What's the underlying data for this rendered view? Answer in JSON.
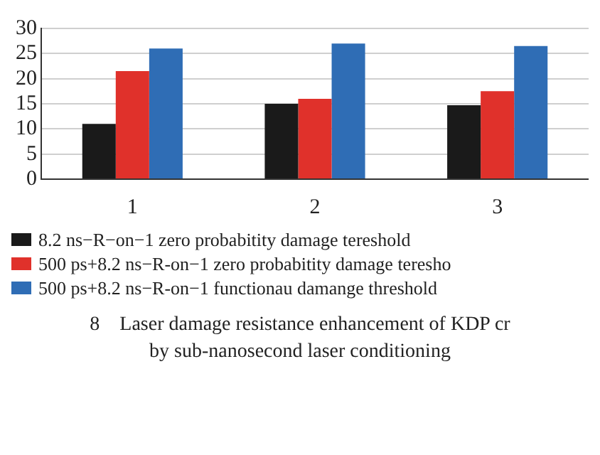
{
  "chart_data": {
    "type": "bar",
    "categories": [
      "1",
      "2",
      "3"
    ],
    "series": [
      {
        "name": "8.2 ns−R−on−1 zero probabitity damage tereshold",
        "color": "#1a1a1a",
        "values": [
          11,
          15,
          14.7
        ]
      },
      {
        "name": "500 ps+8.2 ns−R-on−1 zero probabitity damage teresho",
        "color": "#e0312b",
        "values": [
          21.5,
          16,
          17.5
        ]
      },
      {
        "name": "500 ps+8.2 ns−R-on−1 functionau damange threshold",
        "color": "#2f6db5",
        "values": [
          26,
          27,
          26.5
        ]
      }
    ],
    "ylim": [
      0,
      30
    ],
    "yticks": [
      0,
      5,
      10,
      15,
      20,
      25,
      30
    ],
    "grid": "y",
    "legend": "bottom",
    "annotations": [
      "8    Laser damage resistance enhancement of KDP cr",
      "by sub-nanosecond laser conditioning"
    ]
  }
}
